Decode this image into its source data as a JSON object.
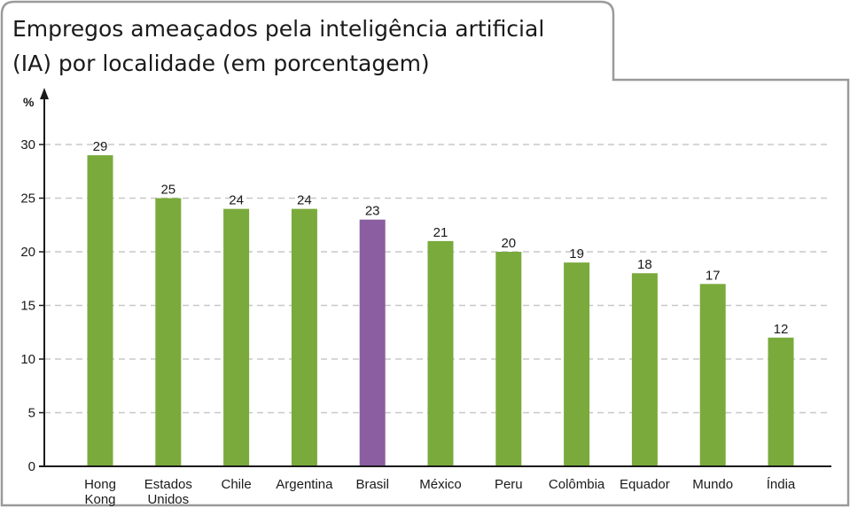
{
  "chart_data": {
    "type": "bar",
    "title": "Empregos ameaçados pela inteligência artificial (IA) por localidade (em porcentagem)",
    "title_lines": [
      "Empregos ameaçados pela inteligência artificial",
      "(IA) por localidade (em porcentagem)"
    ],
    "ylabel": "%",
    "xlabel": "",
    "ylim": [
      0,
      30
    ],
    "yticks": [
      0,
      5,
      10,
      15,
      20,
      25,
      30
    ],
    "grid": true,
    "categories": [
      "Hong Kong",
      "Estados Unidos",
      "Chile",
      "Argentina",
      "Brasil",
      "México",
      "Peru",
      "Colômbia",
      "Equador",
      "Mundo",
      "Índia"
    ],
    "category_lines": [
      [
        "Hong",
        "Kong"
      ],
      [
        "Estados",
        "Unidos"
      ],
      [
        "Chile"
      ],
      [
        "Argentina"
      ],
      [
        "Brasil"
      ],
      [
        "México"
      ],
      [
        "Peru"
      ],
      [
        "Colômbia"
      ],
      [
        "Equador"
      ],
      [
        "Mundo"
      ],
      [
        "Índia"
      ]
    ],
    "values": [
      29,
      25,
      24,
      24,
      23,
      21,
      20,
      19,
      18,
      17,
      12
    ],
    "colors": {
      "default_bar": "#7aaa3c",
      "highlight_bar": "#8a5ea0",
      "highlight_category": "Brasil",
      "grid": "#c8c8c8",
      "frame": "#9a9a9a"
    }
  }
}
